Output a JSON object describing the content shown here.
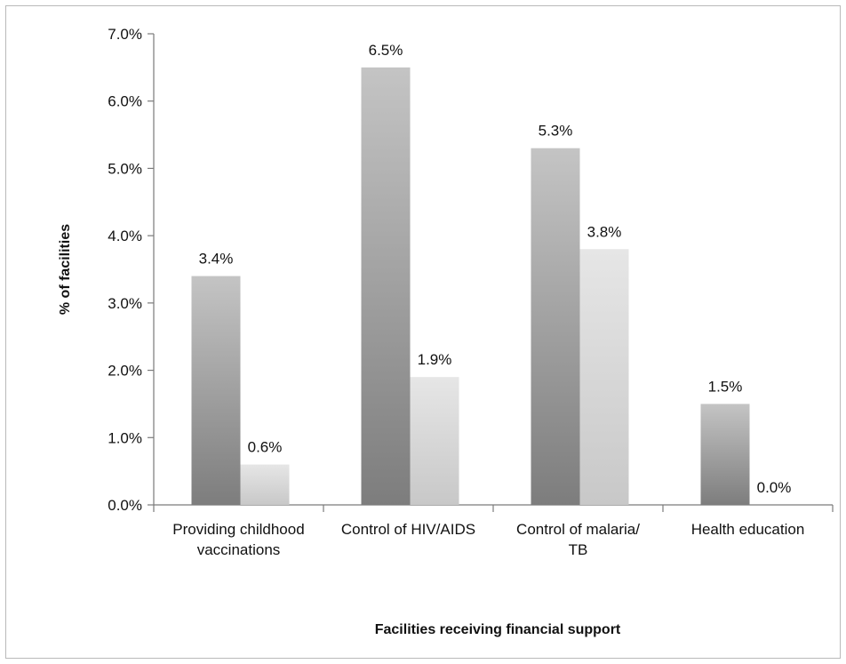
{
  "chart_data": {
    "type": "bar",
    "title": "",
    "xlabel": "Facilities receiving financial support",
    "ylabel": "% of facilities",
    "ylim": [
      0,
      7
    ],
    "yticks": [
      0,
      1,
      2,
      3,
      4,
      5,
      6,
      7
    ],
    "ytick_labels": [
      "0.0%",
      "1.0%",
      "2.0%",
      "3.0%",
      "4.0%",
      "5.0%",
      "6.0%",
      "7.0%"
    ],
    "categories": [
      [
        "Providing childhood",
        "vaccinations"
      ],
      [
        "Control of HIV/AIDS"
      ],
      [
        "Control of malaria/",
        "TB"
      ],
      [
        "Health education"
      ]
    ],
    "series": [
      {
        "values": [
          3.4,
          6.5,
          5.3,
          1.5
        ],
        "labels": [
          "3.4%",
          "6.5%",
          "5.3%",
          "1.5%"
        ],
        "color": "#9a9a9a"
      },
      {
        "values": [
          0.6,
          1.9,
          3.8,
          0.0
        ],
        "labels": [
          "0.6%",
          "1.9%",
          "3.8%",
          "0.0%"
        ],
        "color": "#d4d4d4"
      }
    ],
    "grid": false,
    "legend": "none"
  }
}
